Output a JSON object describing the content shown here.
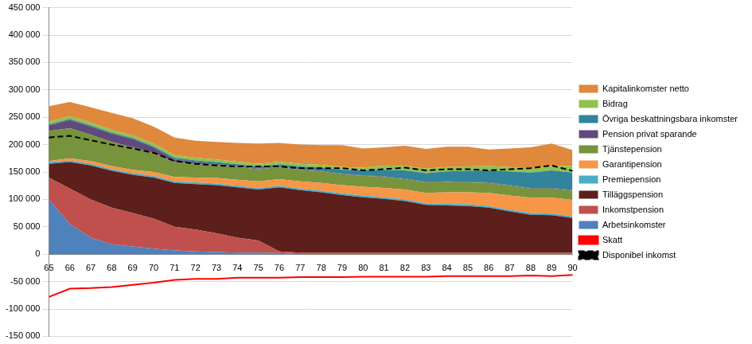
{
  "chart_data": {
    "type": "area",
    "stacked": true,
    "grid": true,
    "legend": "right",
    "categories": [
      "65",
      "66",
      "67",
      "68",
      "69",
      "70",
      "71",
      "72",
      "73",
      "74",
      "75",
      "76",
      "77",
      "78",
      "79",
      "80",
      "81",
      "82",
      "83",
      "84",
      "85",
      "86",
      "87",
      "88",
      "89",
      "90"
    ],
    "ylim": [
      -150000,
      450000
    ],
    "yticks": [
      {
        "value": -150000,
        "label": "-150 000"
      },
      {
        "value": -100000,
        "label": "-100 000"
      },
      {
        "value": -50000,
        "label": "-50 000"
      },
      0,
      {
        "value": 50000,
        "label": "50 000"
      },
      {
        "value": 100000,
        "label": "100 000"
      },
      {
        "value": 150000,
        "label": "150 000"
      },
      {
        "value": 200000,
        "label": "200 000"
      },
      {
        "value": 250000,
        "label": "250 000"
      },
      {
        "value": 300000,
        "label": "300 000"
      },
      {
        "value": 350000,
        "label": "350 000"
      },
      {
        "value": 400000,
        "label": "400 000"
      },
      {
        "value": 450000,
        "label": "450 000"
      }
    ],
    "series": [
      {
        "name": "Kapitalinkomster netto",
        "type": "area",
        "color": "#e0883c",
        "values": [
          28000,
          26000,
          28000,
          31000,
          31000,
          31000,
          32000,
          31000,
          32000,
          34000,
          37000,
          34000,
          35000,
          36000,
          40000,
          35000,
          33000,
          37000,
          36000,
          37000,
          36000,
          30000,
          34000,
          38000,
          41000,
          29000
        ]
      },
      {
        "name": "Bidrag",
        "type": "area",
        "color": "#92c050",
        "values": [
          5000,
          5000,
          5000,
          5000,
          5000,
          5000,
          5000,
          5000,
          5000,
          5000,
          5000,
          5000,
          5000,
          5000,
          5000,
          5000,
          8000,
          8000,
          8000,
          8000,
          8000,
          8000,
          8000,
          8000,
          8000,
          12000
        ]
      },
      {
        "name": "Övriga beskattningsbara inkomster",
        "type": "area",
        "color": "#31849b",
        "values": [
          2000,
          2000,
          2000,
          2000,
          2000,
          2000,
          3000,
          3000,
          3000,
          3000,
          4000,
          4000,
          5000,
          6000,
          7000,
          9000,
          12000,
          15000,
          16000,
          18000,
          20000,
          22000,
          25000,
          28000,
          32000,
          32000
        ]
      },
      {
        "name": "Pension privat sparande",
        "type": "area",
        "color": "#604a7b",
        "values": [
          10000,
          15000,
          15000,
          15000,
          15000,
          10000,
          5000,
          3000,
          2000,
          2000,
          1000,
          1000,
          1000,
          1000,
          1000,
          1000,
          1000,
          1000,
          1000,
          1000,
          1000,
          1000,
          1000,
          1000,
          1000,
          1000
        ]
      },
      {
        "name": "Tjänstepension",
        "type": "area",
        "color": "#77933c",
        "values": [
          55000,
          55000,
          48000,
          44000,
          41000,
          35000,
          27000,
          25000,
          24000,
          23000,
          22000,
          22000,
          21000,
          21000,
          20000,
          20000,
          20000,
          19000,
          19000,
          19000,
          18000,
          18000,
          18000,
          17000,
          17000,
          17000
        ]
      },
      {
        "name": "Garantipension",
        "type": "area",
        "color": "#f79646",
        "values": [
          2000,
          4000,
          5000,
          6000,
          6000,
          7000,
          8000,
          9000,
          10000,
          11000,
          12000,
          12000,
          13000,
          14000,
          15000,
          16000,
          17000,
          18000,
          19000,
          21000,
          22000,
          24000,
          26000,
          28000,
          29000,
          30000
        ]
      },
      {
        "name": "Premiepension",
        "type": "area",
        "color": "#4bacc6",
        "values": [
          3000,
          3000,
          3000,
          3000,
          3000,
          3000,
          3000,
          3000,
          3000,
          3000,
          3000,
          3000,
          3000,
          3000,
          3000,
          3000,
          3000,
          3000,
          3000,
          3000,
          3000,
          3000,
          3000,
          3000,
          3000,
          3000
        ]
      },
      {
        "name": "Tilläggspension",
        "type": "area",
        "color": "#5c1f1b",
        "values": [
          25000,
          48000,
          62000,
          67000,
          70000,
          75000,
          80000,
          83000,
          88000,
          92000,
          93000,
          117000,
          114000,
          110000,
          105000,
          101000,
          98000,
          94000,
          87000,
          86000,
          85000,
          82000,
          75000,
          69000,
          68000,
          63000
        ]
      },
      {
        "name": "Inkomstpension",
        "type": "area",
        "color": "#c0504d",
        "values": [
          40000,
          65000,
          70000,
          67000,
          61000,
          55000,
          43000,
          40000,
          34000,
          27000,
          22000,
          3000,
          3000,
          3000,
          3000,
          3000,
          3000,
          3000,
          3000,
          3000,
          3000,
          3000,
          3000,
          3000,
          3000,
          3000
        ]
      },
      {
        "name": "Arbetsinkomster",
        "type": "area",
        "color": "#4f81bd",
        "values": [
          100000,
          55000,
          30000,
          18000,
          14000,
          10000,
          7000,
          5000,
          4000,
          3000,
          3000,
          2000,
          0,
          0,
          0,
          0,
          0,
          0,
          0,
          0,
          0,
          0,
          0,
          0,
          0,
          0
        ]
      },
      {
        "name": "Skatt",
        "type": "line",
        "color": "#ff0000",
        "line_style": "solid",
        "values": [
          -78000,
          -63000,
          -62000,
          -60000,
          -56000,
          -52000,
          -47000,
          -45000,
          -45000,
          -43000,
          -43000,
          -43000,
          -42000,
          -42000,
          -42000,
          -41000,
          -41000,
          -41000,
          -41000,
          -40000,
          -40000,
          -40000,
          -40000,
          -39000,
          -40000,
          -38000
        ]
      },
      {
        "name": "Disponibel inkomst",
        "type": "line",
        "color": "#000000",
        "line_style": "dashed",
        "values": [
          213000,
          216000,
          208000,
          200000,
          193000,
          185000,
          170000,
          165000,
          162000,
          160000,
          160000,
          160000,
          157000,
          157000,
          157000,
          153000,
          155000,
          158000,
          153000,
          155000,
          155000,
          153000,
          155000,
          157000,
          162000,
          152000
        ]
      }
    ]
  }
}
